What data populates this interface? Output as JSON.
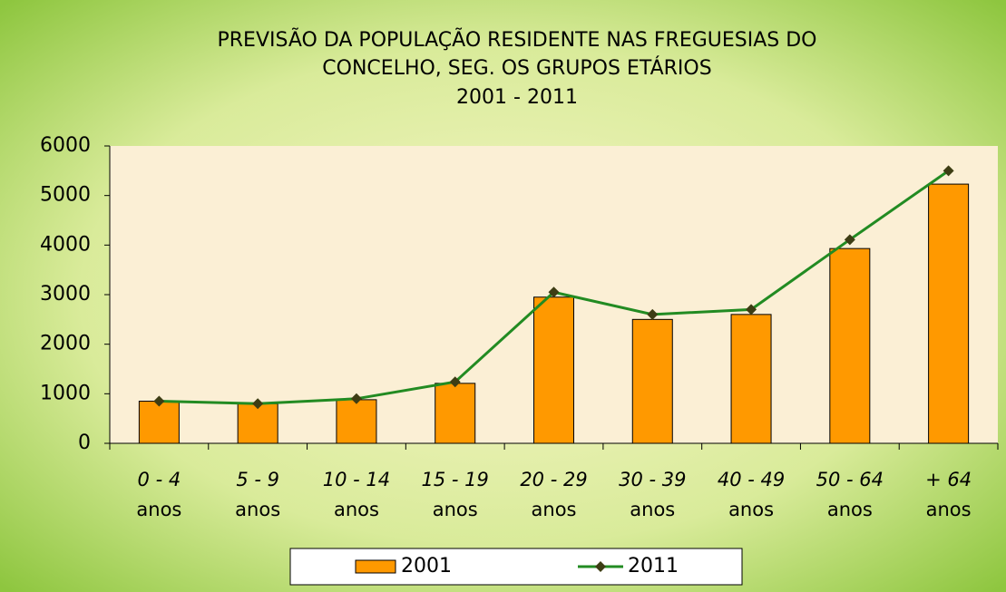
{
  "chart_data": {
    "type": "bar_line",
    "title": [
      "PREVISÃO DA POPULAÇÃO RESIDENTE NAS FREGUESIAS DO",
      "CONCELHO, SEG. OS GRUPOS ETÁRIOS"
    ],
    "subtitle": "2001 - 2011",
    "categories": [
      [
        "0 - 4",
        "anos"
      ],
      [
        "5 - 9",
        "anos"
      ],
      [
        "10 - 14",
        "anos"
      ],
      [
        "15 - 19",
        "anos"
      ],
      [
        "20 - 29",
        "anos"
      ],
      [
        "30 - 39",
        "anos"
      ],
      [
        "40 - 49",
        "anos"
      ],
      [
        "50 - 64",
        "anos"
      ],
      [
        "+ 64",
        "anos"
      ]
    ],
    "series": [
      {
        "name": "2001",
        "type": "bar",
        "color": "#ff9900",
        "values": [
          850,
          800,
          880,
          1210,
          2950,
          2500,
          2600,
          3930,
          5230
        ]
      },
      {
        "name": "2011",
        "type": "line",
        "color": "#228b22",
        "marker_color": "#3d3d14",
        "values": [
          850,
          800,
          900,
          1240,
          3050,
          2600,
          2700,
          4110,
          5500
        ]
      }
    ],
    "ylim": [
      0,
      6000
    ],
    "yticks": [
      0,
      1000,
      2000,
      3000,
      4000,
      5000,
      6000
    ],
    "legend": "bottom"
  }
}
